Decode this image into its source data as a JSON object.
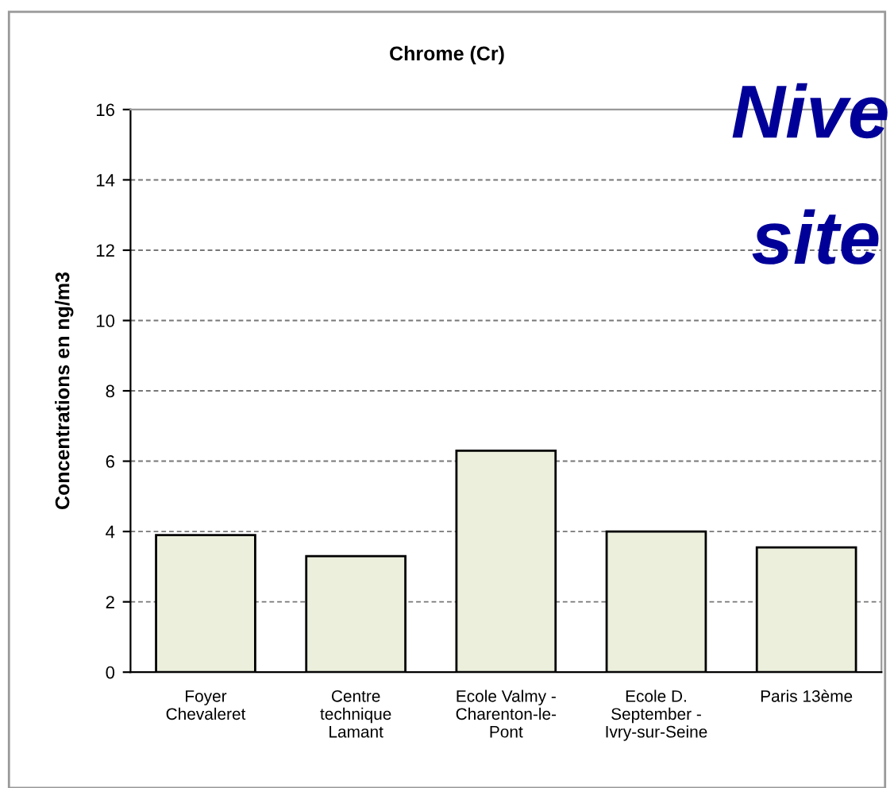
{
  "chart_data": {
    "type": "bar",
    "title": "Chrome (Cr)",
    "ylabel": "Concentrations en ng/m3",
    "categories": [
      "Foyer\nChevaleret",
      "Centre\ntechnique\nLamant",
      "Ecole Valmy -\nCharenton-le-\nPont",
      "Ecole D.\nSeptember -\nIvry-sur-Seine",
      "Paris 13ème"
    ],
    "values": [
      3.9,
      3.3,
      6.3,
      4.0,
      3.55
    ],
    "color": "#ebefdc",
    "ylim": [
      0,
      16
    ],
    "yticks": [
      0,
      2,
      4,
      6,
      8,
      10,
      12,
      14,
      16
    ],
    "grid": "y",
    "annotations": [
      "Nive",
      "site"
    ]
  }
}
